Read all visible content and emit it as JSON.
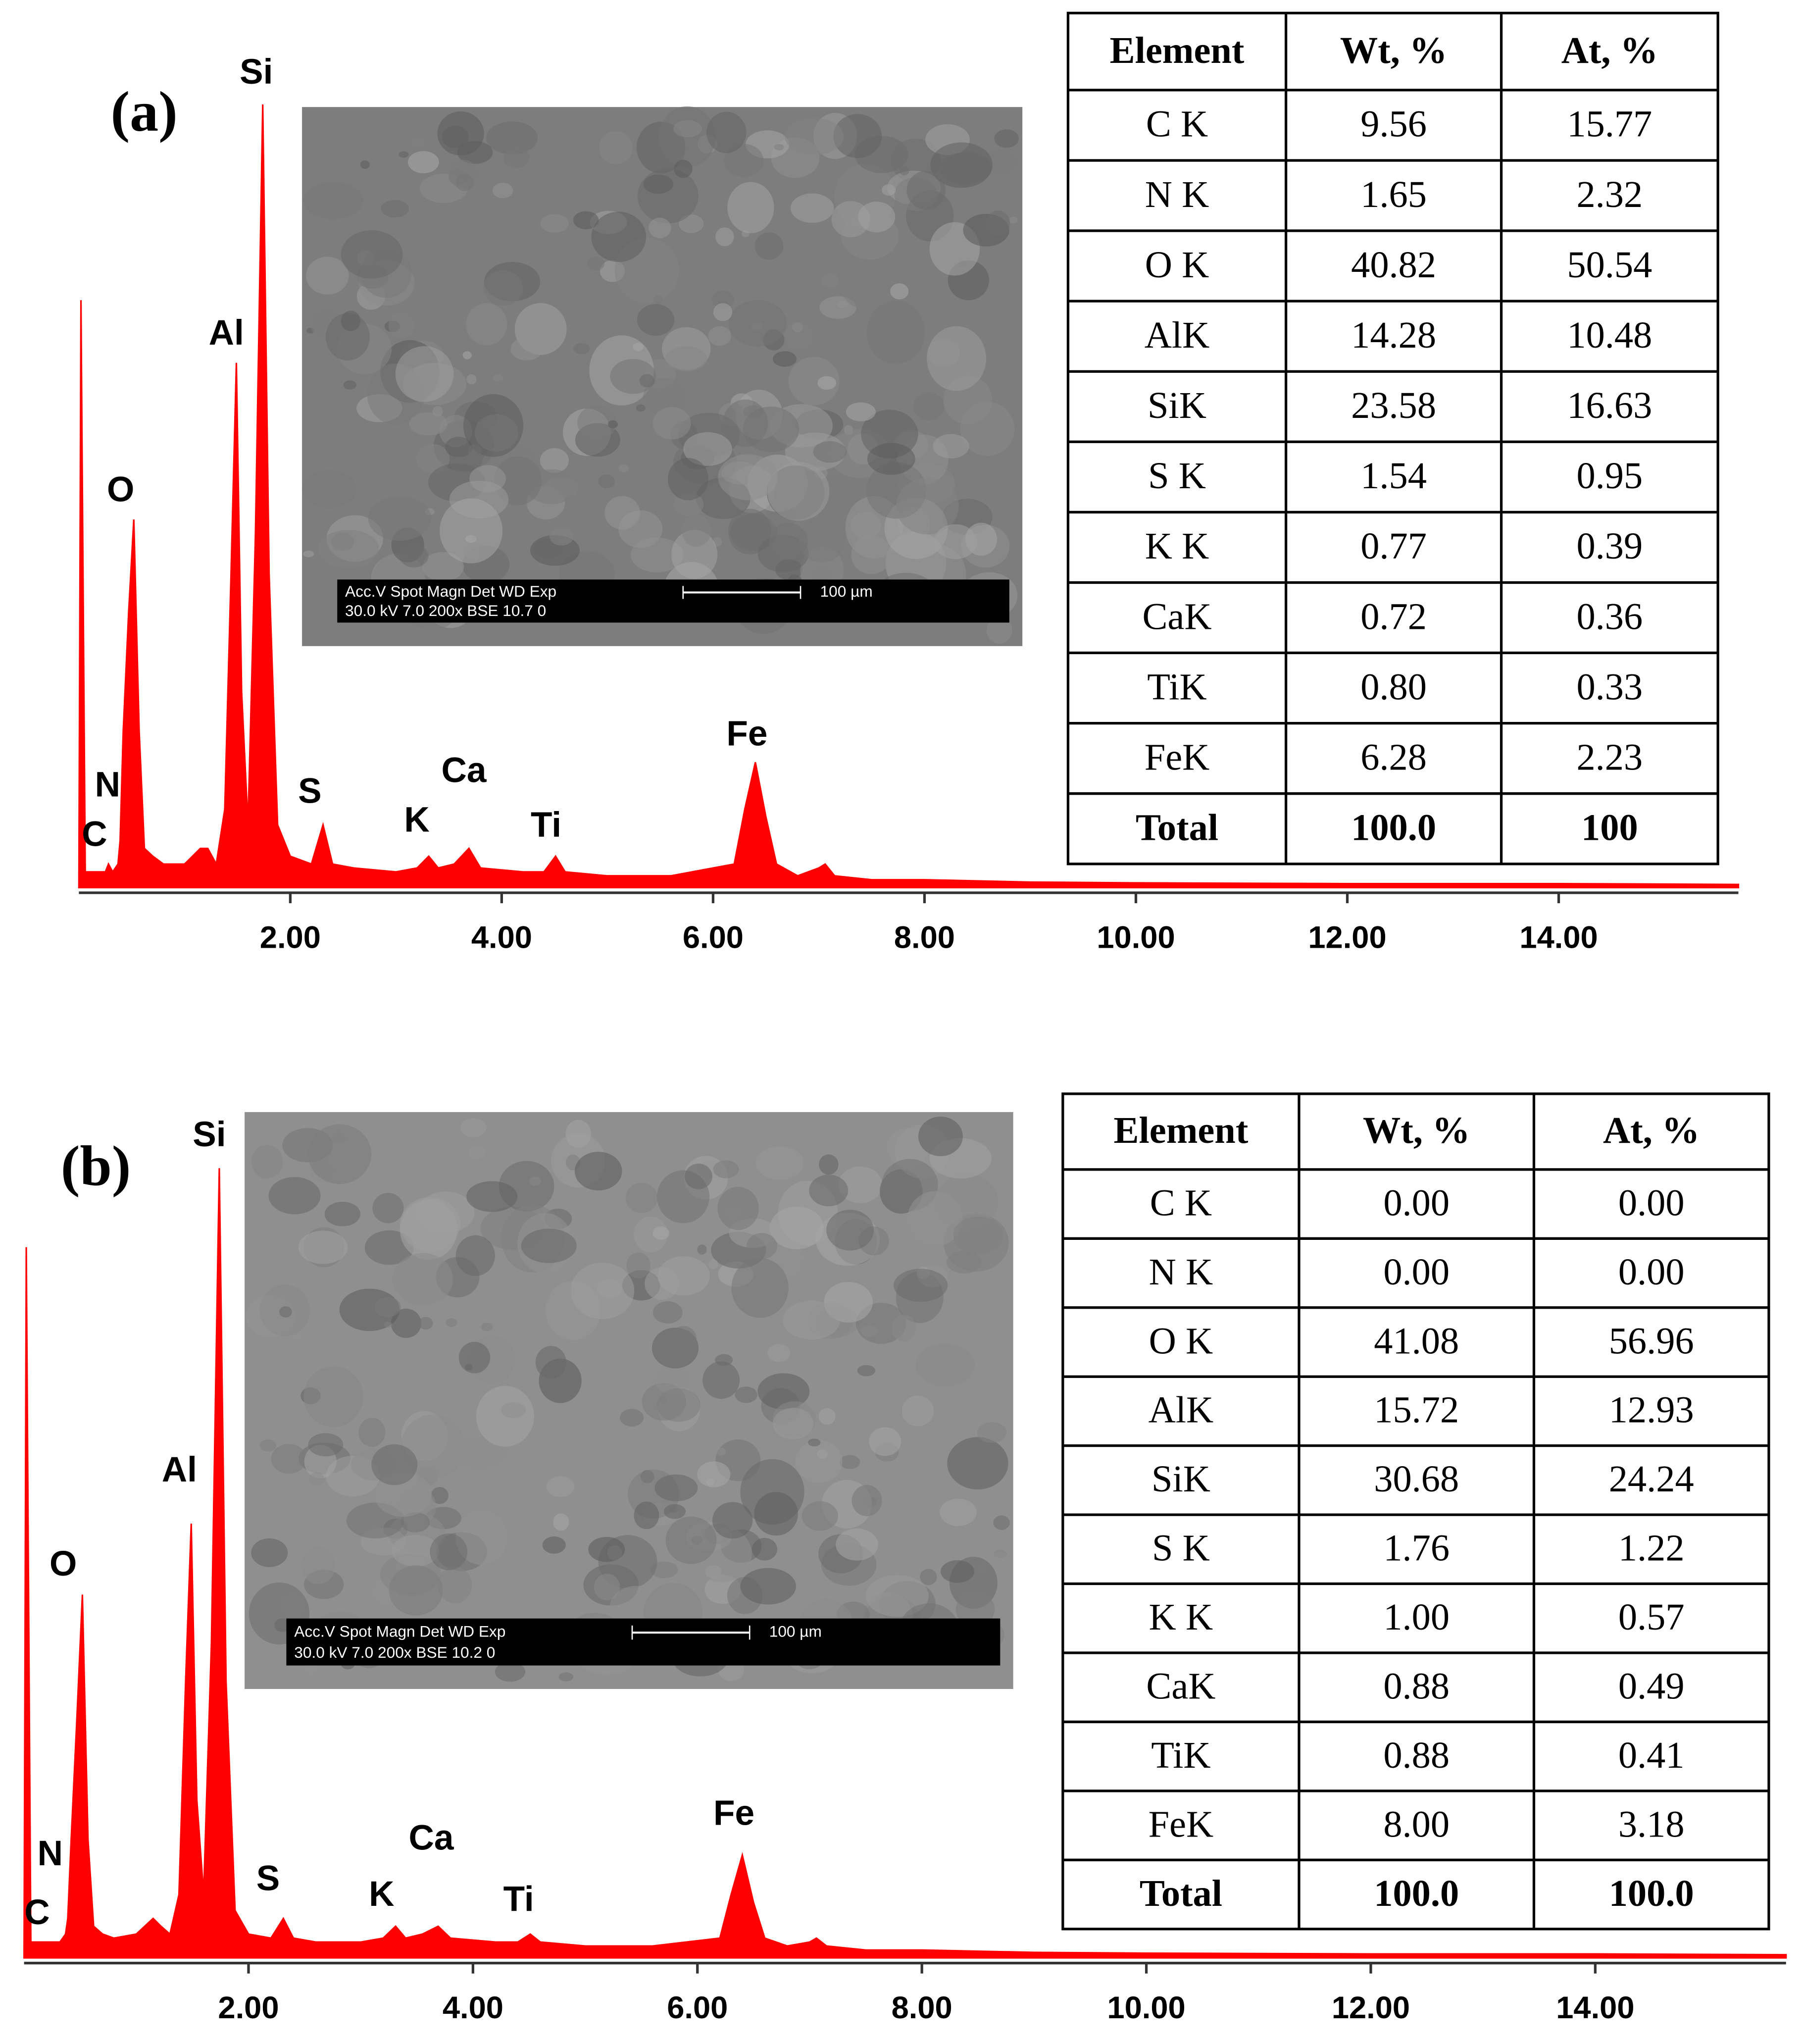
{
  "chart_data": [
    {
      "type": "area",
      "panel_label": "(a)",
      "color": "#ff0000",
      "x": [
        0,
        0.02,
        0.06,
        0.15,
        0.25,
        0.28,
        0.32,
        0.37,
        0.39,
        0.42,
        0.47,
        0.52,
        0.57,
        0.62,
        0.7,
        0.8,
        1.0,
        1.15,
        1.22,
        1.3,
        1.38,
        1.44,
        1.49,
        1.54,
        1.6,
        1.67,
        1.74,
        1.8,
        1.88,
        2.0,
        2.2,
        2.31,
        2.4,
        2.6,
        3.0,
        3.2,
        3.31,
        3.4,
        3.55,
        3.69,
        3.8,
        4.2,
        4.4,
        4.51,
        4.6,
        5.0,
        5.6,
        6.2,
        6.3,
        6.4,
        6.5,
        6.6,
        6.8,
        7.0,
        7.06,
        7.15,
        7.5,
        8.0,
        9.0,
        10.0,
        12.0,
        14.0,
        15.7
      ],
      "values": [
        0,
        75,
        2,
        2,
        2,
        3,
        2,
        3,
        6,
        20,
        35,
        47,
        20,
        5,
        4,
        3,
        3,
        5,
        5,
        3,
        10,
        40,
        67,
        25,
        8,
        45,
        100,
        40,
        8,
        4,
        3,
        8,
        3,
        2.5,
        2,
        2.5,
        4,
        2.5,
        3,
        5,
        2.5,
        2,
        2,
        4,
        2,
        1.5,
        1.5,
        3,
        10,
        16,
        9,
        3,
        1.5,
        2.5,
        3,
        1.5,
        1,
        1,
        0.7,
        0.6,
        0.5,
        0.5,
        0.4
      ],
      "xlim": [
        0,
        15.7
      ],
      "ylim": [
        0,
        100
      ],
      "xticks": [
        {
          "value": 2,
          "label": "2.00"
        },
        {
          "value": 4,
          "label": "4.00"
        },
        {
          "value": 6,
          "label": "6.00"
        },
        {
          "value": 8,
          "label": "8.00"
        },
        {
          "value": 10,
          "label": "10.00"
        },
        {
          "value": 12,
          "label": "12.00"
        },
        {
          "value": 14,
          "label": "14.00"
        }
      ],
      "peak_labels": [
        "C",
        "N",
        "O",
        "Al",
        "Si",
        "S",
        "K",
        "Ca",
        "Ti",
        "Fe"
      ],
      "sem_image": {
        "info_header": "Acc.V  Spot Magn    Det  WD  Exp",
        "info_values": "30.0 kV 7.0   200x    BSE 10.7  0",
        "scale_bar": "100 µm"
      },
      "table": {
        "header": [
          "Element",
          "Wt, %",
          "At, %"
        ],
        "rows": [
          [
            "C K",
            "9.56",
            "15.77"
          ],
          [
            "N K",
            "1.65",
            "2.32"
          ],
          [
            "O K",
            "40.82",
            "50.54"
          ],
          [
            "AlK",
            "14.28",
            "10.48"
          ],
          [
            "SiK",
            "23.58",
            "16.63"
          ],
          [
            "S K",
            "1.54",
            "0.95"
          ],
          [
            "K K",
            "0.77",
            "0.39"
          ],
          [
            "CaK",
            "0.72",
            "0.36"
          ],
          [
            "TiK",
            "0.80",
            "0.33"
          ],
          [
            "FeK",
            "6.28",
            "2.23"
          ],
          [
            "Total",
            "100.0",
            "100"
          ]
        ]
      }
    },
    {
      "type": "area",
      "panel_label": "(b)",
      "color": "#ff0000",
      "x": [
        0,
        0.02,
        0.06,
        0.15,
        0.25,
        0.28,
        0.32,
        0.37,
        0.39,
        0.42,
        0.47,
        0.52,
        0.57,
        0.62,
        0.7,
        0.8,
        1.0,
        1.15,
        1.22,
        1.3,
        1.38,
        1.44,
        1.49,
        1.54,
        1.6,
        1.67,
        1.74,
        1.8,
        1.88,
        2.0,
        2.2,
        2.31,
        2.4,
        2.6,
        3.0,
        3.2,
        3.31,
        3.4,
        3.55,
        3.69,
        3.8,
        4.2,
        4.4,
        4.51,
        4.6,
        5.0,
        5.6,
        6.2,
        6.3,
        6.4,
        6.5,
        6.6,
        6.8,
        7.0,
        7.06,
        7.15,
        7.5,
        8.0,
        9.0,
        10.0,
        12.0,
        14.0,
        15.7
      ],
      "values": [
        0,
        90,
        2,
        2,
        2,
        2,
        2,
        3,
        5,
        15,
        30,
        46,
        15,
        4,
        3,
        2.5,
        3,
        5,
        4,
        3,
        8,
        35,
        55,
        20,
        8,
        40,
        100,
        35,
        6,
        3,
        2.5,
        5,
        2.5,
        2,
        2,
        2.5,
        4,
        2.5,
        3,
        4,
        2.5,
        2,
        2,
        3,
        2,
        1.5,
        1.5,
        2.5,
        8,
        13,
        7,
        2.5,
        1.5,
        2,
        2.5,
        1.5,
        1,
        1,
        0.7,
        0.6,
        0.5,
        0.5,
        0.4
      ],
      "xlim": [
        0,
        15.7
      ],
      "ylim": [
        0,
        100
      ],
      "xticks": [
        {
          "value": 2,
          "label": "2.00"
        },
        {
          "value": 4,
          "label": "4.00"
        },
        {
          "value": 6,
          "label": "6.00"
        },
        {
          "value": 8,
          "label": "8.00"
        },
        {
          "value": 10,
          "label": "10.00"
        },
        {
          "value": 12,
          "label": "12.00"
        },
        {
          "value": 14,
          "label": "14.00"
        }
      ],
      "peak_labels": [
        "C",
        "N",
        "O",
        "Al",
        "Si",
        "S",
        "K",
        "Ca",
        "Ti",
        "Fe"
      ],
      "sem_image": {
        "info_header": "Acc.V  Spot Magn    Det  WD  Exp",
        "info_values": "30.0 kV 7.0   200x    BSE 10.2  0",
        "scale_bar": "100 µm"
      },
      "table": {
        "header": [
          "Element",
          "Wt, %",
          "At, %"
        ],
        "rows": [
          [
            "C K",
            "0.00",
            "0.00"
          ],
          [
            "N K",
            "0.00",
            "0.00"
          ],
          [
            "O K",
            "41.08",
            "56.96"
          ],
          [
            "AlK",
            "15.72",
            "12.93"
          ],
          [
            "SiK",
            "30.68",
            "24.24"
          ],
          [
            "S K",
            "1.76",
            "1.22"
          ],
          [
            "K K",
            "1.00",
            "0.57"
          ],
          [
            "CaK",
            "0.88",
            "0.49"
          ],
          [
            "TiK",
            "0.88",
            "0.41"
          ],
          [
            "FeK",
            "8.00",
            "3.18"
          ],
          [
            "Total",
            "100.0",
            "100.0"
          ]
        ]
      }
    }
  ]
}
